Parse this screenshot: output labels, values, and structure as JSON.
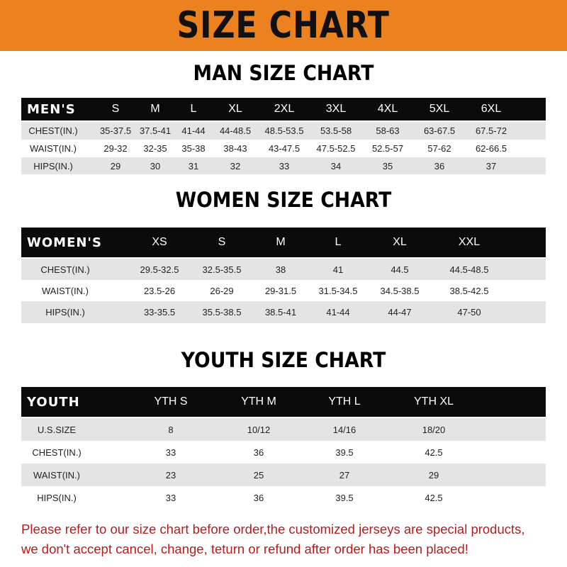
{
  "banner_title": "SIZE CHART",
  "men": {
    "title": "MAN SIZE CHART",
    "header": [
      "MEN'S",
      "S",
      "M",
      "L",
      "XL",
      "2XL",
      "3XL",
      "4XL",
      "5XL",
      "6XL"
    ],
    "rows": [
      [
        "CHEST(IN.)",
        "35-37.5",
        "37.5-41",
        "41-44",
        "44-48.5",
        "48.5-53.5",
        "53.5-58",
        "58-63",
        "63-67.5",
        "67.5-72"
      ],
      [
        "WAIST(IN.)",
        "29-32",
        "32-35",
        "35-38",
        "38-43",
        "43-47.5",
        "47.5-52.5",
        "52.5-57",
        "57-62",
        "62-66.5"
      ],
      [
        "HIPS(IN.)",
        "29",
        "30",
        "31",
        "32",
        "33",
        "34",
        "35",
        "36",
        "37"
      ]
    ]
  },
  "women": {
    "title": "WOMEN SIZE CHART",
    "header": [
      "WOMEN'S",
      "XS",
      "S",
      "M",
      "L",
      "XL",
      "XXL"
    ],
    "rows": [
      [
        "CHEST(IN.)",
        "29.5-32.5",
        "32.5-35.5",
        "38",
        "41",
        "44.5",
        "44.5-48.5"
      ],
      [
        "WAIST(IN.)",
        "23.5-26",
        "26-29",
        "29-31.5",
        "31.5-34.5",
        "34.5-38.5",
        "38.5-42.5"
      ],
      [
        "HIPS(IN.)",
        "33-35.5",
        "35.5-38.5",
        "38.5-41",
        "41-44",
        "44-47",
        "47-50"
      ]
    ]
  },
  "youth": {
    "title": "YOUTH SIZE CHART",
    "header": [
      "YOUTH",
      "YTH S",
      "YTH M",
      "YTH L",
      "YTH XL"
    ],
    "rows": [
      [
        "U.S.SIZE",
        "8",
        "10/12",
        "14/16",
        "18/20"
      ],
      [
        "CHEST(IN.)",
        "33",
        "36",
        "39.5",
        "42.5"
      ],
      [
        "WAIST(IN.)",
        "23",
        "25",
        "27",
        "29"
      ],
      [
        "HIPS(IN.)",
        "33",
        "36",
        "39.5",
        "42.5"
      ]
    ]
  },
  "note": {
    "line1": "Please refer to our size chart before order,the customized jerseys are special products,",
    "line2": "we don't accept cancel, change, teturn or refund after order has been placed!"
  },
  "colors": {
    "banner": "#ec821f",
    "header_row": "#0b0b0b",
    "alt_row": "#e4e4e4",
    "note_text": "#b51c1c"
  }
}
